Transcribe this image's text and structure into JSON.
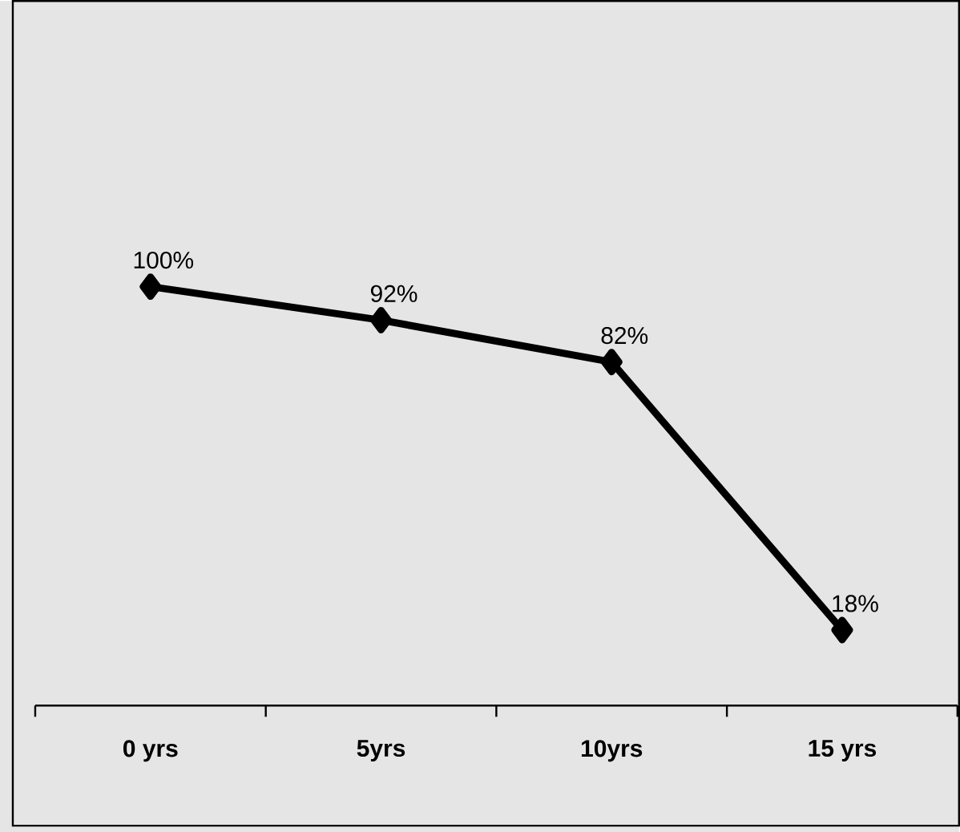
{
  "chart_data": {
    "type": "line",
    "categories": [
      "0 yrs",
      "5yrs",
      "10yrs",
      "15 yrs"
    ],
    "series": [
      {
        "color": "#000000",
        "values": [
          100,
          92,
          82,
          18
        ],
        "value_labels": [
          "100%",
          "92%",
          "82%",
          "18%"
        ]
      }
    ],
    "marker": "diamond",
    "line_style": "solid"
  }
}
